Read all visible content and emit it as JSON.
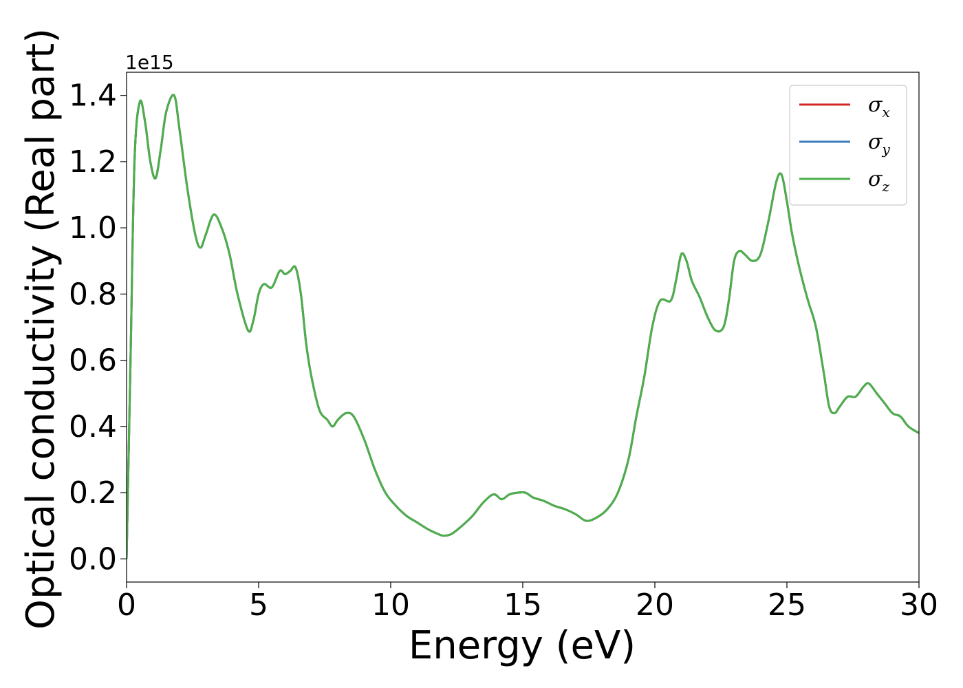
{
  "chart_data": {
    "type": "line",
    "xlabel": "Energy (eV)",
    "ylabel": "Optical conductivity (Real part)",
    "y_offset_label": "1e15",
    "xlim": [
      0,
      30
    ],
    "ylim": [
      -0.07,
      1.47
    ],
    "x_ticks": [
      0,
      5,
      10,
      15,
      20,
      25,
      30
    ],
    "x_tick_labels": [
      "0",
      "5",
      "10",
      "15",
      "20",
      "25",
      "30"
    ],
    "y_ticks": [
      0.0,
      0.2,
      0.4,
      0.6,
      0.8,
      1.0,
      1.2,
      1.4
    ],
    "y_tick_labels": [
      "0.0",
      "0.2",
      "0.4",
      "0.6",
      "0.8",
      "1.0",
      "1.2",
      "1.4"
    ],
    "grid": false,
    "legend_position": "top-right",
    "legend": [
      {
        "symbol": "σ",
        "subscript": "x",
        "color": "#d62728"
      },
      {
        "symbol": "σ",
        "subscript": "y",
        "color": "#3a7dbf"
      },
      {
        "symbol": "σ",
        "subscript": "z",
        "color": "#4daf4a"
      }
    ],
    "series": [
      {
        "name": "σx",
        "color": "#d62728",
        "x": [
          0,
          0.15,
          0.3,
          0.5,
          0.7,
          0.9,
          1.1,
          1.3,
          1.5,
          1.8,
          2.0,
          2.3,
          2.6,
          2.8,
          3.0,
          3.3,
          3.6,
          3.9,
          4.2,
          4.6,
          4.8,
          5.0,
          5.2,
          5.5,
          5.8,
          6.0,
          6.2,
          6.4,
          6.6,
          6.8,
          7.0,
          7.3,
          7.6,
          7.8,
          8.0,
          8.3,
          8.6,
          9.0,
          9.4,
          9.8,
          10.2,
          10.6,
          11.0,
          11.4,
          11.8,
          12.0,
          12.3,
          12.7,
          13.1,
          13.5,
          13.9,
          14.2,
          14.5,
          14.8,
          15.1,
          15.4,
          15.8,
          16.2,
          16.6,
          17.0,
          17.4,
          17.8,
          18.2,
          18.6,
          19.0,
          19.3,
          19.6,
          19.9,
          20.2,
          20.6,
          20.8,
          21.0,
          21.2,
          21.4,
          21.7,
          22.0,
          22.3,
          22.6,
          22.8,
          23.0,
          23.2,
          23.4,
          23.7,
          24.0,
          24.3,
          24.6,
          24.8,
          25.0,
          25.2,
          25.5,
          25.8,
          26.1,
          26.4,
          26.6,
          26.8,
          27.0,
          27.3,
          27.6,
          27.9,
          28.1,
          28.4,
          28.7,
          29.0,
          29.3,
          29.6,
          30.0
        ],
        "values": [
          0.0,
          0.6,
          1.2,
          1.38,
          1.32,
          1.2,
          1.15,
          1.24,
          1.35,
          1.4,
          1.3,
          1.12,
          0.98,
          0.94,
          0.98,
          1.04,
          1.0,
          0.92,
          0.8,
          0.69,
          0.72,
          0.8,
          0.83,
          0.82,
          0.87,
          0.86,
          0.87,
          0.88,
          0.8,
          0.65,
          0.55,
          0.45,
          0.42,
          0.4,
          0.42,
          0.44,
          0.43,
          0.36,
          0.27,
          0.2,
          0.16,
          0.13,
          0.11,
          0.09,
          0.075,
          0.07,
          0.075,
          0.1,
          0.13,
          0.17,
          0.195,
          0.18,
          0.195,
          0.2,
          0.2,
          0.185,
          0.175,
          0.16,
          0.15,
          0.135,
          0.115,
          0.125,
          0.15,
          0.2,
          0.3,
          0.43,
          0.55,
          0.7,
          0.78,
          0.78,
          0.84,
          0.92,
          0.9,
          0.84,
          0.79,
          0.73,
          0.69,
          0.7,
          0.78,
          0.9,
          0.93,
          0.92,
          0.9,
          0.92,
          1.02,
          1.14,
          1.16,
          1.08,
          0.98,
          0.87,
          0.78,
          0.7,
          0.56,
          0.46,
          0.44,
          0.46,
          0.49,
          0.49,
          0.52,
          0.53,
          0.5,
          0.47,
          0.44,
          0.43,
          0.4,
          0.38
        ]
      },
      {
        "name": "σy",
        "color": "#3a7dbf",
        "x": [
          0,
          0.15,
          0.3,
          0.5,
          0.7,
          0.9,
          1.1,
          1.3,
          1.5,
          1.8,
          2.0,
          2.3,
          2.6,
          2.8,
          3.0,
          3.3,
          3.6,
          3.9,
          4.2,
          4.6,
          4.8,
          5.0,
          5.2,
          5.5,
          5.8,
          6.0,
          6.2,
          6.4,
          6.6,
          6.8,
          7.0,
          7.3,
          7.6,
          7.8,
          8.0,
          8.3,
          8.6,
          9.0,
          9.4,
          9.8,
          10.2,
          10.6,
          11.0,
          11.4,
          11.8,
          12.0,
          12.3,
          12.7,
          13.1,
          13.5,
          13.9,
          14.2,
          14.5,
          14.8,
          15.1,
          15.4,
          15.8,
          16.2,
          16.6,
          17.0,
          17.4,
          17.8,
          18.2,
          18.6,
          19.0,
          19.3,
          19.6,
          19.9,
          20.2,
          20.6,
          20.8,
          21.0,
          21.2,
          21.4,
          21.7,
          22.0,
          22.3,
          22.6,
          22.8,
          23.0,
          23.2,
          23.4,
          23.7,
          24.0,
          24.3,
          24.6,
          24.8,
          25.0,
          25.2,
          25.5,
          25.8,
          26.1,
          26.4,
          26.6,
          26.8,
          27.0,
          27.3,
          27.6,
          27.9,
          28.1,
          28.4,
          28.7,
          29.0,
          29.3,
          29.6,
          30.0
        ],
        "values": [
          0.0,
          0.6,
          1.2,
          1.38,
          1.32,
          1.2,
          1.15,
          1.24,
          1.35,
          1.4,
          1.3,
          1.12,
          0.98,
          0.94,
          0.98,
          1.04,
          1.0,
          0.92,
          0.8,
          0.69,
          0.72,
          0.8,
          0.83,
          0.82,
          0.87,
          0.86,
          0.87,
          0.88,
          0.8,
          0.65,
          0.55,
          0.45,
          0.42,
          0.4,
          0.42,
          0.44,
          0.43,
          0.36,
          0.27,
          0.2,
          0.16,
          0.13,
          0.11,
          0.09,
          0.075,
          0.07,
          0.075,
          0.1,
          0.13,
          0.17,
          0.195,
          0.18,
          0.195,
          0.2,
          0.2,
          0.185,
          0.175,
          0.16,
          0.15,
          0.135,
          0.115,
          0.125,
          0.15,
          0.2,
          0.3,
          0.43,
          0.55,
          0.7,
          0.78,
          0.78,
          0.84,
          0.92,
          0.9,
          0.84,
          0.79,
          0.73,
          0.69,
          0.7,
          0.78,
          0.9,
          0.93,
          0.92,
          0.9,
          0.92,
          1.02,
          1.14,
          1.16,
          1.08,
          0.98,
          0.87,
          0.78,
          0.7,
          0.56,
          0.46,
          0.44,
          0.46,
          0.49,
          0.49,
          0.52,
          0.53,
          0.5,
          0.47,
          0.44,
          0.43,
          0.4,
          0.38
        ]
      },
      {
        "name": "σz",
        "color": "#4daf4a",
        "x": [
          0,
          0.15,
          0.3,
          0.5,
          0.7,
          0.9,
          1.1,
          1.3,
          1.5,
          1.8,
          2.0,
          2.3,
          2.6,
          2.8,
          3.0,
          3.3,
          3.6,
          3.9,
          4.2,
          4.6,
          4.8,
          5.0,
          5.2,
          5.5,
          5.8,
          6.0,
          6.2,
          6.4,
          6.6,
          6.8,
          7.0,
          7.3,
          7.6,
          7.8,
          8.0,
          8.3,
          8.6,
          9.0,
          9.4,
          9.8,
          10.2,
          10.6,
          11.0,
          11.4,
          11.8,
          12.0,
          12.3,
          12.7,
          13.1,
          13.5,
          13.9,
          14.2,
          14.5,
          14.8,
          15.1,
          15.4,
          15.8,
          16.2,
          16.6,
          17.0,
          17.4,
          17.8,
          18.2,
          18.6,
          19.0,
          19.3,
          19.6,
          19.9,
          20.2,
          20.6,
          20.8,
          21.0,
          21.2,
          21.4,
          21.7,
          22.0,
          22.3,
          22.6,
          22.8,
          23.0,
          23.2,
          23.4,
          23.7,
          24.0,
          24.3,
          24.6,
          24.8,
          25.0,
          25.2,
          25.5,
          25.8,
          26.1,
          26.4,
          26.6,
          26.8,
          27.0,
          27.3,
          27.6,
          27.9,
          28.1,
          28.4,
          28.7,
          29.0,
          29.3,
          29.6,
          30.0
        ],
        "values": [
          0.0,
          0.6,
          1.2,
          1.38,
          1.32,
          1.2,
          1.15,
          1.24,
          1.35,
          1.4,
          1.3,
          1.12,
          0.98,
          0.94,
          0.98,
          1.04,
          1.0,
          0.92,
          0.8,
          0.69,
          0.72,
          0.8,
          0.83,
          0.82,
          0.87,
          0.86,
          0.87,
          0.88,
          0.8,
          0.65,
          0.55,
          0.45,
          0.42,
          0.4,
          0.42,
          0.44,
          0.43,
          0.36,
          0.27,
          0.2,
          0.16,
          0.13,
          0.11,
          0.09,
          0.075,
          0.07,
          0.075,
          0.1,
          0.13,
          0.17,
          0.195,
          0.18,
          0.195,
          0.2,
          0.2,
          0.185,
          0.175,
          0.16,
          0.15,
          0.135,
          0.115,
          0.125,
          0.15,
          0.2,
          0.3,
          0.43,
          0.55,
          0.7,
          0.78,
          0.78,
          0.84,
          0.92,
          0.9,
          0.84,
          0.79,
          0.73,
          0.69,
          0.7,
          0.78,
          0.9,
          0.93,
          0.92,
          0.9,
          0.92,
          1.02,
          1.14,
          1.16,
          1.08,
          0.98,
          0.87,
          0.78,
          0.7,
          0.56,
          0.46,
          0.44,
          0.46,
          0.49,
          0.49,
          0.52,
          0.53,
          0.5,
          0.47,
          0.44,
          0.43,
          0.4,
          0.38
        ]
      }
    ]
  }
}
